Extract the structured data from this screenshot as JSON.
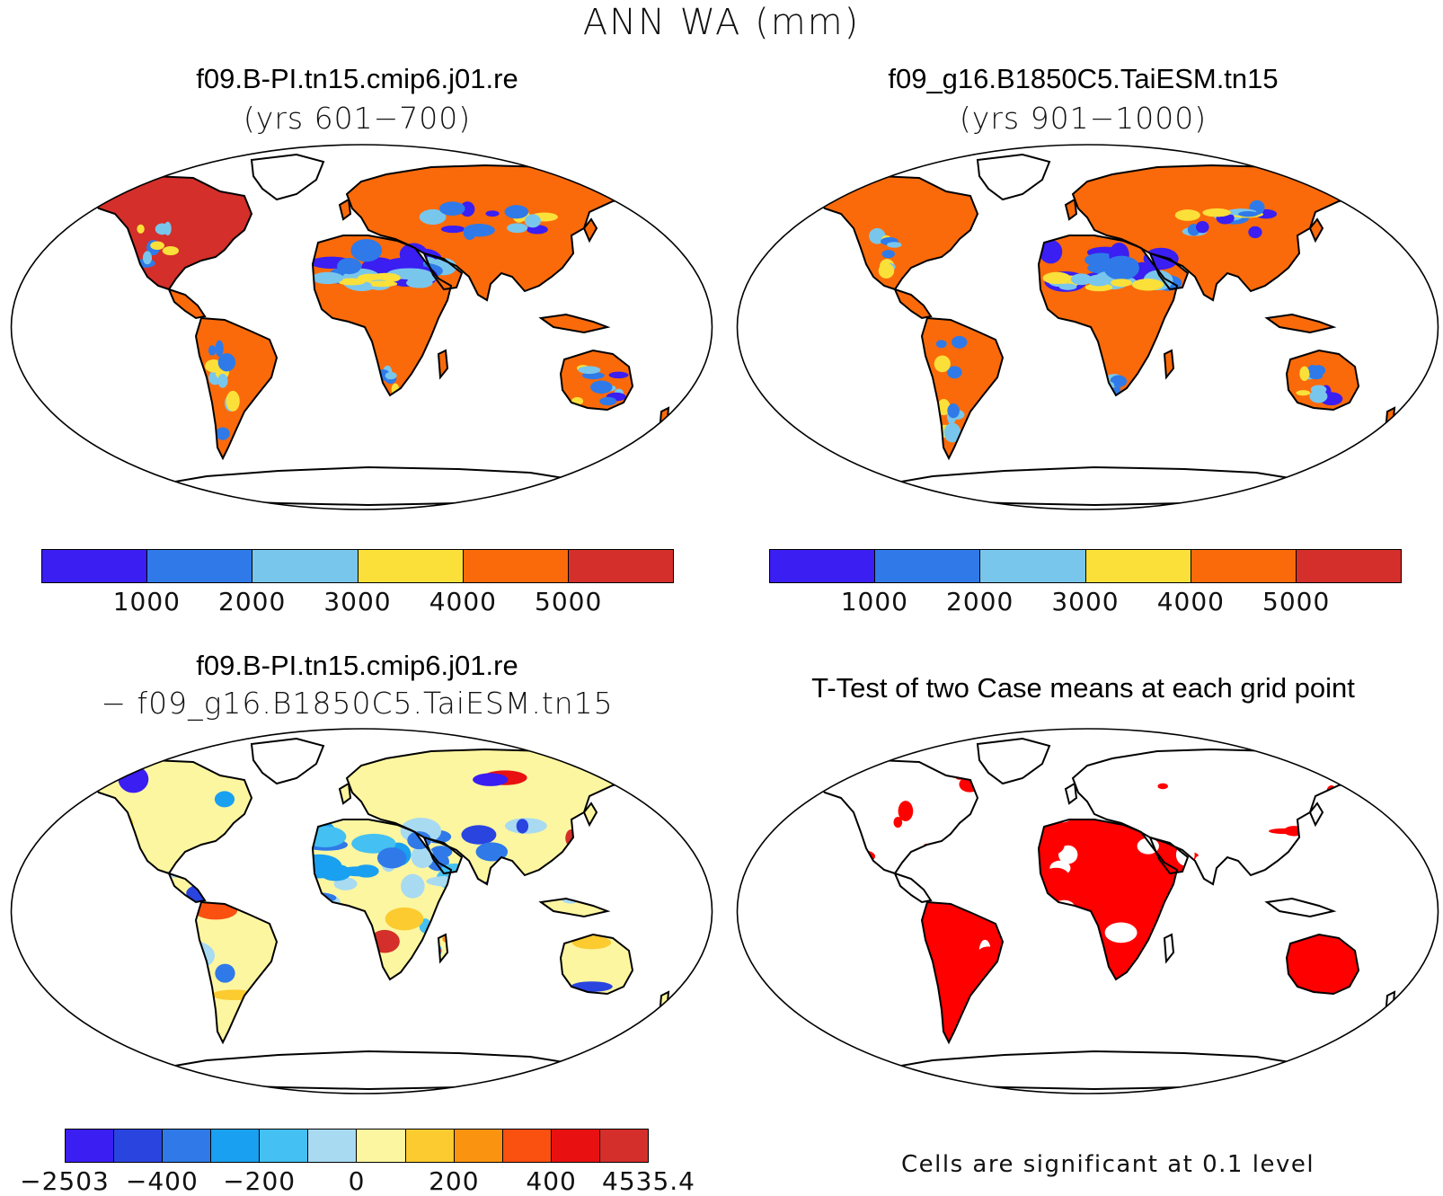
{
  "figure_title": "ANN WA (mm)",
  "panels": {
    "top_left": {
      "title": "f09.B-PI.tn15.cmip6.j01.re",
      "subtitle": "(yrs 601−700)"
    },
    "top_right": {
      "title": "f09_g16.B1850C5.TaiESM.tn15",
      "subtitle": "(yrs 901−1000)"
    },
    "bottom_left": {
      "title": "f09.B-PI.tn15.cmip6.j01.re",
      "subtitle": "− f09_g16.B1850C5.TaiESM.tn15"
    },
    "bottom_right": {
      "title": "T-Test of two Case means at each grid point",
      "footnote": "Cells are significant at 0.1 level"
    }
  },
  "colorbar_abs": {
    "colors": [
      "#3a1ef2",
      "#2f7ae8",
      "#79c6ec",
      "#fbe03a",
      "#fa6a0a",
      "#d42f2a"
    ],
    "labels": [
      "1000",
      "2000",
      "3000",
      "4000",
      "5000"
    ]
  },
  "colorbar_diff": {
    "colors": [
      "#3a1ef2",
      "#2a44e0",
      "#2f7ae8",
      "#1aa0f0",
      "#44c0f2",
      "#a8daf2",
      "#fdf6a0",
      "#fbcb30",
      "#fa9410",
      "#fa5010",
      "#e81010",
      "#d42f2a"
    ],
    "labels": [
      "−2503",
      "−400",
      "−200",
      "0",
      "200",
      "400",
      "4535.4"
    ]
  },
  "significance_color": "#ff0000"
}
